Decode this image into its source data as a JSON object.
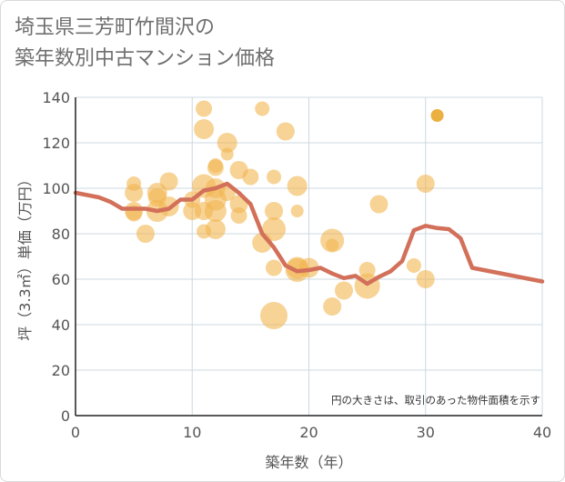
{
  "title": {
    "line1": "埼玉県三芳町竹間沢の",
    "line2": "築年数別中古マンション価格"
  },
  "chart_data": {
    "type": "scatter",
    "xlabel": "築年数（年）",
    "ylabel": "坪（3.3㎡）単価（万円）",
    "xlim": [
      0,
      40
    ],
    "ylim": [
      0,
      140
    ],
    "x_ticks": [
      0,
      10,
      20,
      30,
      40
    ],
    "y_ticks": [
      0,
      20,
      40,
      60,
      80,
      100,
      120,
      140
    ],
    "grid": true,
    "annotation": "円の大きさは、取引のあった物件面積を示す",
    "colors": {
      "bubble": "#f2b550",
      "bubble_dark": "#e8a21f",
      "line": "#d2705a",
      "grid": "#cdd8e0",
      "axis": "#222222"
    },
    "bubbles": [
      {
        "x": 5,
        "y": 102,
        "s": 8
      },
      {
        "x": 5,
        "y": 98,
        "s": 10
      },
      {
        "x": 5,
        "y": 90,
        "s": 10
      },
      {
        "x": 5,
        "y": 89,
        "s": 9
      },
      {
        "x": 6,
        "y": 80,
        "s": 10
      },
      {
        "x": 7,
        "y": 98,
        "s": 11
      },
      {
        "x": 7,
        "y": 96,
        "s": 10
      },
      {
        "x": 7,
        "y": 90,
        "s": 12
      },
      {
        "x": 8,
        "y": 103,
        "s": 10
      },
      {
        "x": 8,
        "y": 92,
        "s": 11
      },
      {
        "x": 10,
        "y": 95,
        "s": 9
      },
      {
        "x": 10,
        "y": 90,
        "s": 10
      },
      {
        "x": 11,
        "y": 135,
        "s": 9
      },
      {
        "x": 11,
        "y": 126,
        "s": 11
      },
      {
        "x": 11,
        "y": 101,
        "s": 13
      },
      {
        "x": 11,
        "y": 90,
        "s": 10
      },
      {
        "x": 11,
        "y": 81,
        "s": 8
      },
      {
        "x": 12,
        "y": 110,
        "s": 8
      },
      {
        "x": 12,
        "y": 109,
        "s": 9
      },
      {
        "x": 12,
        "y": 100,
        "s": 11
      },
      {
        "x": 12,
        "y": 95,
        "s": 12
      },
      {
        "x": 12,
        "y": 90,
        "s": 12
      },
      {
        "x": 12,
        "y": 82,
        "s": 11
      },
      {
        "x": 13,
        "y": 120,
        "s": 11
      },
      {
        "x": 13,
        "y": 115,
        "s": 7
      },
      {
        "x": 13,
        "y": 98,
        "s": 9
      },
      {
        "x": 14,
        "y": 108,
        "s": 10
      },
      {
        "x": 14,
        "y": 93,
        "s": 10
      },
      {
        "x": 14,
        "y": 88,
        "s": 9
      },
      {
        "x": 15,
        "y": 105,
        "s": 9
      },
      {
        "x": 16,
        "y": 135,
        "s": 8
      },
      {
        "x": 16,
        "y": 76,
        "s": 11
      },
      {
        "x": 17,
        "y": 105,
        "s": 8
      },
      {
        "x": 17,
        "y": 90,
        "s": 10
      },
      {
        "x": 17,
        "y": 82,
        "s": 13
      },
      {
        "x": 17,
        "y": 65,
        "s": 9
      },
      {
        "x": 17,
        "y": 44,
        "s": 15
      },
      {
        "x": 18,
        "y": 125,
        "s": 10
      },
      {
        "x": 19,
        "y": 101,
        "s": 11
      },
      {
        "x": 19,
        "y": 90,
        "s": 7
      },
      {
        "x": 19,
        "y": 65,
        "s": 12
      },
      {
        "x": 19,
        "y": 64,
        "s": 13
      },
      {
        "x": 20,
        "y": 65,
        "s": 11
      },
      {
        "x": 22,
        "y": 77,
        "s": 13
      },
      {
        "x": 22,
        "y": 75,
        "s": 7
      },
      {
        "x": 22,
        "y": 48,
        "s": 10
      },
      {
        "x": 23,
        "y": 55,
        "s": 10
      },
      {
        "x": 25,
        "y": 64,
        "s": 9
      },
      {
        "x": 25,
        "y": 57,
        "s": 14
      },
      {
        "x": 26,
        "y": 93,
        "s": 10
      },
      {
        "x": 29,
        "y": 66,
        "s": 8
      },
      {
        "x": 30,
        "y": 102,
        "s": 10
      },
      {
        "x": 30,
        "y": 60,
        "s": 10
      },
      {
        "x": 31,
        "y": 132,
        "s": 7,
        "dark": true
      }
    ],
    "series": [
      {
        "x": [
          0,
          2,
          3,
          4,
          5,
          6,
          7,
          8,
          9,
          10,
          11,
          12,
          13,
          14,
          15,
          16,
          17,
          18,
          19,
          20,
          21,
          22,
          23,
          24,
          25,
          26,
          27,
          28,
          29,
          30,
          31,
          32,
          33,
          34,
          40
        ],
        "y": [
          98,
          96,
          94,
          91,
          91,
          91,
          90,
          91,
          95,
          95,
          99,
          100,
          102,
          98,
          93,
          80,
          74,
          66,
          63.5,
          64,
          65,
          62.5,
          60.5,
          61.5,
          58,
          61,
          63.5,
          68,
          81.5,
          83.5,
          82.5,
          82,
          78,
          65,
          59
        ]
      }
    ]
  }
}
